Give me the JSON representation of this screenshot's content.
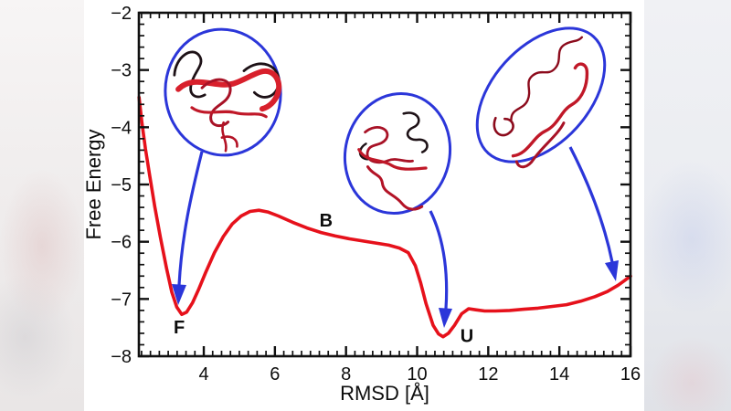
{
  "chart_data": {
    "type": "line",
    "title": "",
    "xlabel": "RMSD [Å]",
    "ylabel": "Free Energy",
    "xlim": [
      2.175,
      16
    ],
    "ylim": [
      -8,
      -2
    ],
    "x_ticks": [
      4,
      6,
      8,
      10,
      12,
      14,
      16
    ],
    "x_minor_step": 0.25,
    "y_ticks": [
      -2,
      -3,
      -4,
      -5,
      -6,
      -7,
      -8
    ],
    "y_minor_step": 0.2,
    "grid": false,
    "legend": "none",
    "series": [
      {
        "name": "free energy landscape curve",
        "color": "#e6111b",
        "points": [
          [
            2.18,
            -3.48
          ],
          [
            2.26,
            -3.92
          ],
          [
            2.36,
            -4.38
          ],
          [
            2.48,
            -4.85
          ],
          [
            2.62,
            -5.38
          ],
          [
            2.78,
            -5.92
          ],
          [
            2.95,
            -6.46
          ],
          [
            3.1,
            -6.88
          ],
          [
            3.24,
            -7.14
          ],
          [
            3.38,
            -7.27
          ],
          [
            3.52,
            -7.23
          ],
          [
            3.68,
            -7.07
          ],
          [
            3.85,
            -6.84
          ],
          [
            4.05,
            -6.54
          ],
          [
            4.3,
            -6.19
          ],
          [
            4.55,
            -5.91
          ],
          [
            4.8,
            -5.69
          ],
          [
            5.05,
            -5.55
          ],
          [
            5.3,
            -5.47
          ],
          [
            5.55,
            -5.45
          ],
          [
            5.8,
            -5.48
          ],
          [
            6.1,
            -5.55
          ],
          [
            6.5,
            -5.66
          ],
          [
            6.9,
            -5.76
          ],
          [
            7.3,
            -5.84
          ],
          [
            7.7,
            -5.9
          ],
          [
            8.1,
            -5.95
          ],
          [
            8.5,
            -5.99
          ],
          [
            8.9,
            -6.03
          ],
          [
            9.2,
            -6.06
          ],
          [
            9.5,
            -6.11
          ],
          [
            9.75,
            -6.19
          ],
          [
            9.95,
            -6.42
          ],
          [
            10.1,
            -6.72
          ],
          [
            10.25,
            -7.08
          ],
          [
            10.45,
            -7.46
          ],
          [
            10.6,
            -7.61
          ],
          [
            10.73,
            -7.66
          ],
          [
            10.88,
            -7.6
          ],
          [
            11.05,
            -7.46
          ],
          [
            11.25,
            -7.26
          ],
          [
            11.45,
            -7.17
          ],
          [
            11.65,
            -7.19
          ],
          [
            11.9,
            -7.21
          ],
          [
            12.2,
            -7.21
          ],
          [
            12.6,
            -7.2
          ],
          [
            13.0,
            -7.18
          ],
          [
            13.4,
            -7.16
          ],
          [
            13.8,
            -7.13
          ],
          [
            14.2,
            -7.1
          ],
          [
            14.6,
            -7.04
          ],
          [
            15.0,
            -6.96
          ],
          [
            15.35,
            -6.87
          ],
          [
            15.65,
            -6.76
          ],
          [
            15.85,
            -6.67
          ],
          [
            16.0,
            -6.6
          ]
        ]
      }
    ],
    "state_labels": [
      {
        "text": "F",
        "x": 3.31,
        "y": -7.49
      },
      {
        "text": "B",
        "x": 7.44,
        "y": -5.62
      },
      {
        "text": "U",
        "x": 11.4,
        "y": -7.64
      }
    ],
    "annotations": [
      {
        "name": "folded-structure-inset",
        "shape": "ellipse",
        "points_to": "F"
      },
      {
        "name": "intermediate-structure-inset",
        "shape": "ellipse",
        "points_to": "U"
      },
      {
        "name": "unfolded-structure-inset",
        "shape": "ellipse",
        "points_to": "right tail of curve"
      }
    ]
  },
  "colors": {
    "curve": "#e6111b",
    "annotation_blue": "#2b36d9",
    "axis": "#101010",
    "ribbon_red": "#d8202c",
    "ribbon_crimson": "#a81226",
    "ribbon_black": "#1d1116"
  }
}
